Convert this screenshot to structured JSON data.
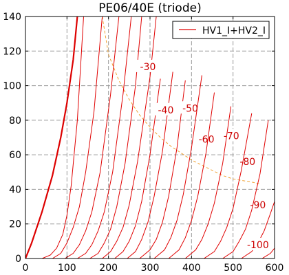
{
  "chart_data": {
    "type": "line",
    "title": "PE06/40E (triode)",
    "xlabel": "",
    "ylabel": "",
    "xlim": [
      0,
      600
    ],
    "ylim": [
      0,
      140
    ],
    "x_ticks": [
      0,
      100,
      200,
      300,
      400,
      500,
      600
    ],
    "y_ticks": [
      0,
      20,
      40,
      60,
      80,
      100,
      120,
      140
    ],
    "grid": true,
    "legend": {
      "placement": "top-right",
      "entries": [
        "HV1_I+HV2_I"
      ]
    },
    "colors": {
      "curve": "#e00000",
      "bold_curve": "#dd0000",
      "dissipation": "#f0a030",
      "grid": "#9a9a9a"
    },
    "series": [
      {
        "values_xy": [
          [
            0,
            0
          ],
          [
            15,
            9
          ],
          [
            40,
            27
          ],
          [
            65,
            48
          ],
          [
            85,
            70
          ],
          [
            100,
            90
          ],
          [
            115,
            115
          ],
          [
            125,
            140
          ]
        ],
        "bold": true
      },
      {
        "values_xy": [
          [
            40,
            0
          ],
          [
            60,
            2
          ],
          [
            75,
            6
          ],
          [
            90,
            14
          ],
          [
            100,
            25
          ],
          [
            110,
            42
          ],
          [
            125,
            80
          ],
          [
            140,
            140
          ]
        ]
      },
      {
        "values_xy": [
          [
            65,
            0
          ],
          [
            85,
            3
          ],
          [
            100,
            9
          ],
          [
            115,
            18
          ],
          [
            130,
            30
          ],
          [
            145,
            50
          ],
          [
            165,
            85
          ],
          [
            185,
            140
          ]
        ]
      },
      {
        "values_xy": [
          [
            95,
            0
          ],
          [
            115,
            3
          ],
          [
            130,
            8
          ],
          [
            145,
            16
          ],
          [
            160,
            27
          ],
          [
            180,
            50
          ],
          [
            205,
            95
          ],
          [
            225,
            140
          ]
        ]
      },
      {
        "values_xy": [
          [
            125,
            0
          ],
          [
            145,
            3
          ],
          [
            160,
            8
          ],
          [
            175,
            16
          ],
          [
            190,
            27
          ],
          [
            210,
            50
          ],
          [
            235,
            95
          ],
          [
            255,
            140
          ]
        ]
      },
      {
        "values_xy": [
          [
            155,
            0
          ],
          [
            175,
            3
          ],
          [
            190,
            9
          ],
          [
            205,
            17
          ],
          [
            220,
            30
          ],
          [
            240,
            55
          ],
          [
            265,
            100
          ],
          [
            280,
            140
          ]
        ]
      },
      {
        "values_xy": [
          [
            185,
            0
          ],
          [
            205,
            4
          ],
          [
            220,
            10
          ],
          [
            235,
            18
          ],
          [
            250,
            31
          ],
          [
            270,
            56
          ],
          [
            300,
            105
          ],
          [
            315,
            140
          ]
        ]
      },
      {
        "values_xy": [
          [
            215,
            0
          ],
          [
            235,
            4
          ],
          [
            250,
            10
          ],
          [
            265,
            19
          ],
          [
            280,
            33
          ],
          [
            300,
            60
          ],
          [
            325,
            104
          ]
        ],
        "label": "-30",
        "label_xy": [
          295,
          111
        ]
      },
      {
        "values_xy": [
          [
            245,
            0
          ],
          [
            265,
            4
          ],
          [
            280,
            11
          ],
          [
            295,
            21
          ],
          [
            310,
            36
          ],
          [
            330,
            62
          ],
          [
            355,
            108
          ]
        ],
        "label": "-40",
        "label_xy": [
          338,
          86
        ]
      },
      {
        "values_xy": [
          [
            275,
            0
          ],
          [
            300,
            5
          ],
          [
            315,
            11
          ],
          [
            330,
            21
          ],
          [
            345,
            36
          ],
          [
            365,
            64
          ],
          [
            385,
            103
          ]
        ],
        "label": "-50",
        "label_xy": [
          397,
          87
        ]
      },
      {
        "values_xy": [
          [
            310,
            0
          ],
          [
            335,
            5
          ],
          [
            350,
            12
          ],
          [
            365,
            22
          ],
          [
            380,
            37
          ],
          [
            400,
            64
          ],
          [
            425,
            106
          ]
        ],
        "label": "-60",
        "label_xy": [
          436,
          69
        ]
      },
      {
        "values_xy": [
          [
            345,
            0
          ],
          [
            370,
            5
          ],
          [
            385,
            12
          ],
          [
            400,
            22
          ],
          [
            415,
            36
          ],
          [
            435,
            61
          ],
          [
            455,
            96
          ]
        ],
        "label": "-70",
        "label_xy": [
          496,
          71
        ]
      },
      {
        "values_xy": [
          [
            385,
            0
          ],
          [
            410,
            5
          ],
          [
            425,
            11
          ],
          [
            440,
            20
          ],
          [
            455,
            32
          ],
          [
            475,
            55
          ],
          [
            495,
            88
          ]
        ],
        "label": "-80",
        "label_xy": [
          535,
          56
        ]
      },
      {
        "values_xy": [
          [
            430,
            0
          ],
          [
            455,
            4
          ],
          [
            470,
            10
          ],
          [
            485,
            18
          ],
          [
            500,
            29
          ],
          [
            520,
            51
          ],
          [
            545,
            84
          ]
        ],
        "label": "-90",
        "label_xy": [
          560,
          31
        ]
      },
      {
        "values_xy": [
          [
            475,
            0
          ],
          [
            500,
            4
          ],
          [
            515,
            10
          ],
          [
            530,
            17
          ],
          [
            545,
            28
          ],
          [
            565,
            49
          ],
          [
            585,
            80
          ]
        ]
      },
      {
        "values_xy": [
          [
            520,
            0
          ],
          [
            545,
            4
          ],
          [
            560,
            9
          ],
          [
            575,
            16
          ],
          [
            590,
            26
          ],
          [
            600,
            33
          ]
        ],
        "label": "-100",
        "label_xy": [
          560,
          8
        ]
      },
      {
        "values_xy": [
          [
            570,
            0
          ],
          [
            590,
            3
          ],
          [
            600,
            6
          ]
        ]
      }
    ],
    "dissipation_curve": [
      [
        185,
        140
      ],
      [
        200,
        118
      ],
      [
        225,
        103
      ],
      [
        250,
        92
      ],
      [
        275,
        83
      ],
      [
        300,
        76
      ],
      [
        325,
        70
      ],
      [
        350,
        65
      ],
      [
        375,
        61
      ],
      [
        400,
        57
      ],
      [
        425,
        54
      ],
      [
        450,
        51
      ],
      [
        475,
        48
      ],
      [
        500,
        46
      ],
      [
        525,
        45
      ],
      [
        550,
        44
      ],
      [
        565,
        43
      ]
    ]
  }
}
